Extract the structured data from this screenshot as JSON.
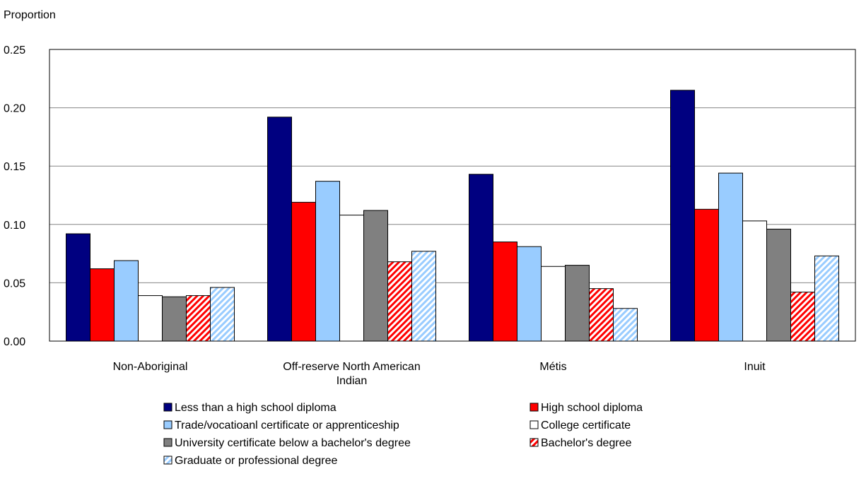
{
  "chart_data": {
    "type": "bar",
    "ylabel": "Proportion",
    "xlabel": "",
    "ylim": [
      0,
      0.25
    ],
    "yticks": [
      "0.00",
      "0.05",
      "0.10",
      "0.15",
      "0.20",
      "0.25"
    ],
    "grid": true,
    "legend_position": "bottom",
    "categories": [
      [
        "Non-Aboriginal"
      ],
      [
        "Off-reserve North American",
        "Indian"
      ],
      [
        "Métis"
      ],
      [
        "Inuit"
      ]
    ],
    "series": [
      {
        "name": "Less than a high school diploma",
        "color": "#000080",
        "pattern": "solid",
        "values": [
          0.092,
          0.192,
          0.143,
          0.215
        ]
      },
      {
        "name": "High school diploma",
        "color": "#ff0000",
        "pattern": "solid",
        "values": [
          0.062,
          0.119,
          0.085,
          0.113
        ]
      },
      {
        "name": "Trade/vocatioanl certificate or apprenticeship",
        "color": "#99ccff",
        "pattern": "solid",
        "values": [
          0.069,
          0.137,
          0.081,
          0.144
        ]
      },
      {
        "name": "College certificate",
        "color": "#ffffff",
        "pattern": "solid",
        "values": [
          0.039,
          0.108,
          0.064,
          0.103
        ]
      },
      {
        "name": "University certificate below a bachelor's degree",
        "color": "#808080",
        "pattern": "solid",
        "values": [
          0.038,
          0.112,
          0.065,
          0.096
        ]
      },
      {
        "name": "Bachelor's degree",
        "color": "#ff0000",
        "pattern": "hatch",
        "values": [
          0.039,
          0.068,
          0.045,
          0.042
        ]
      },
      {
        "name": "Graduate or professional degree",
        "color": "#99ccff",
        "pattern": "hatch",
        "values": [
          0.046,
          0.077,
          0.028,
          0.073
        ]
      }
    ]
  }
}
